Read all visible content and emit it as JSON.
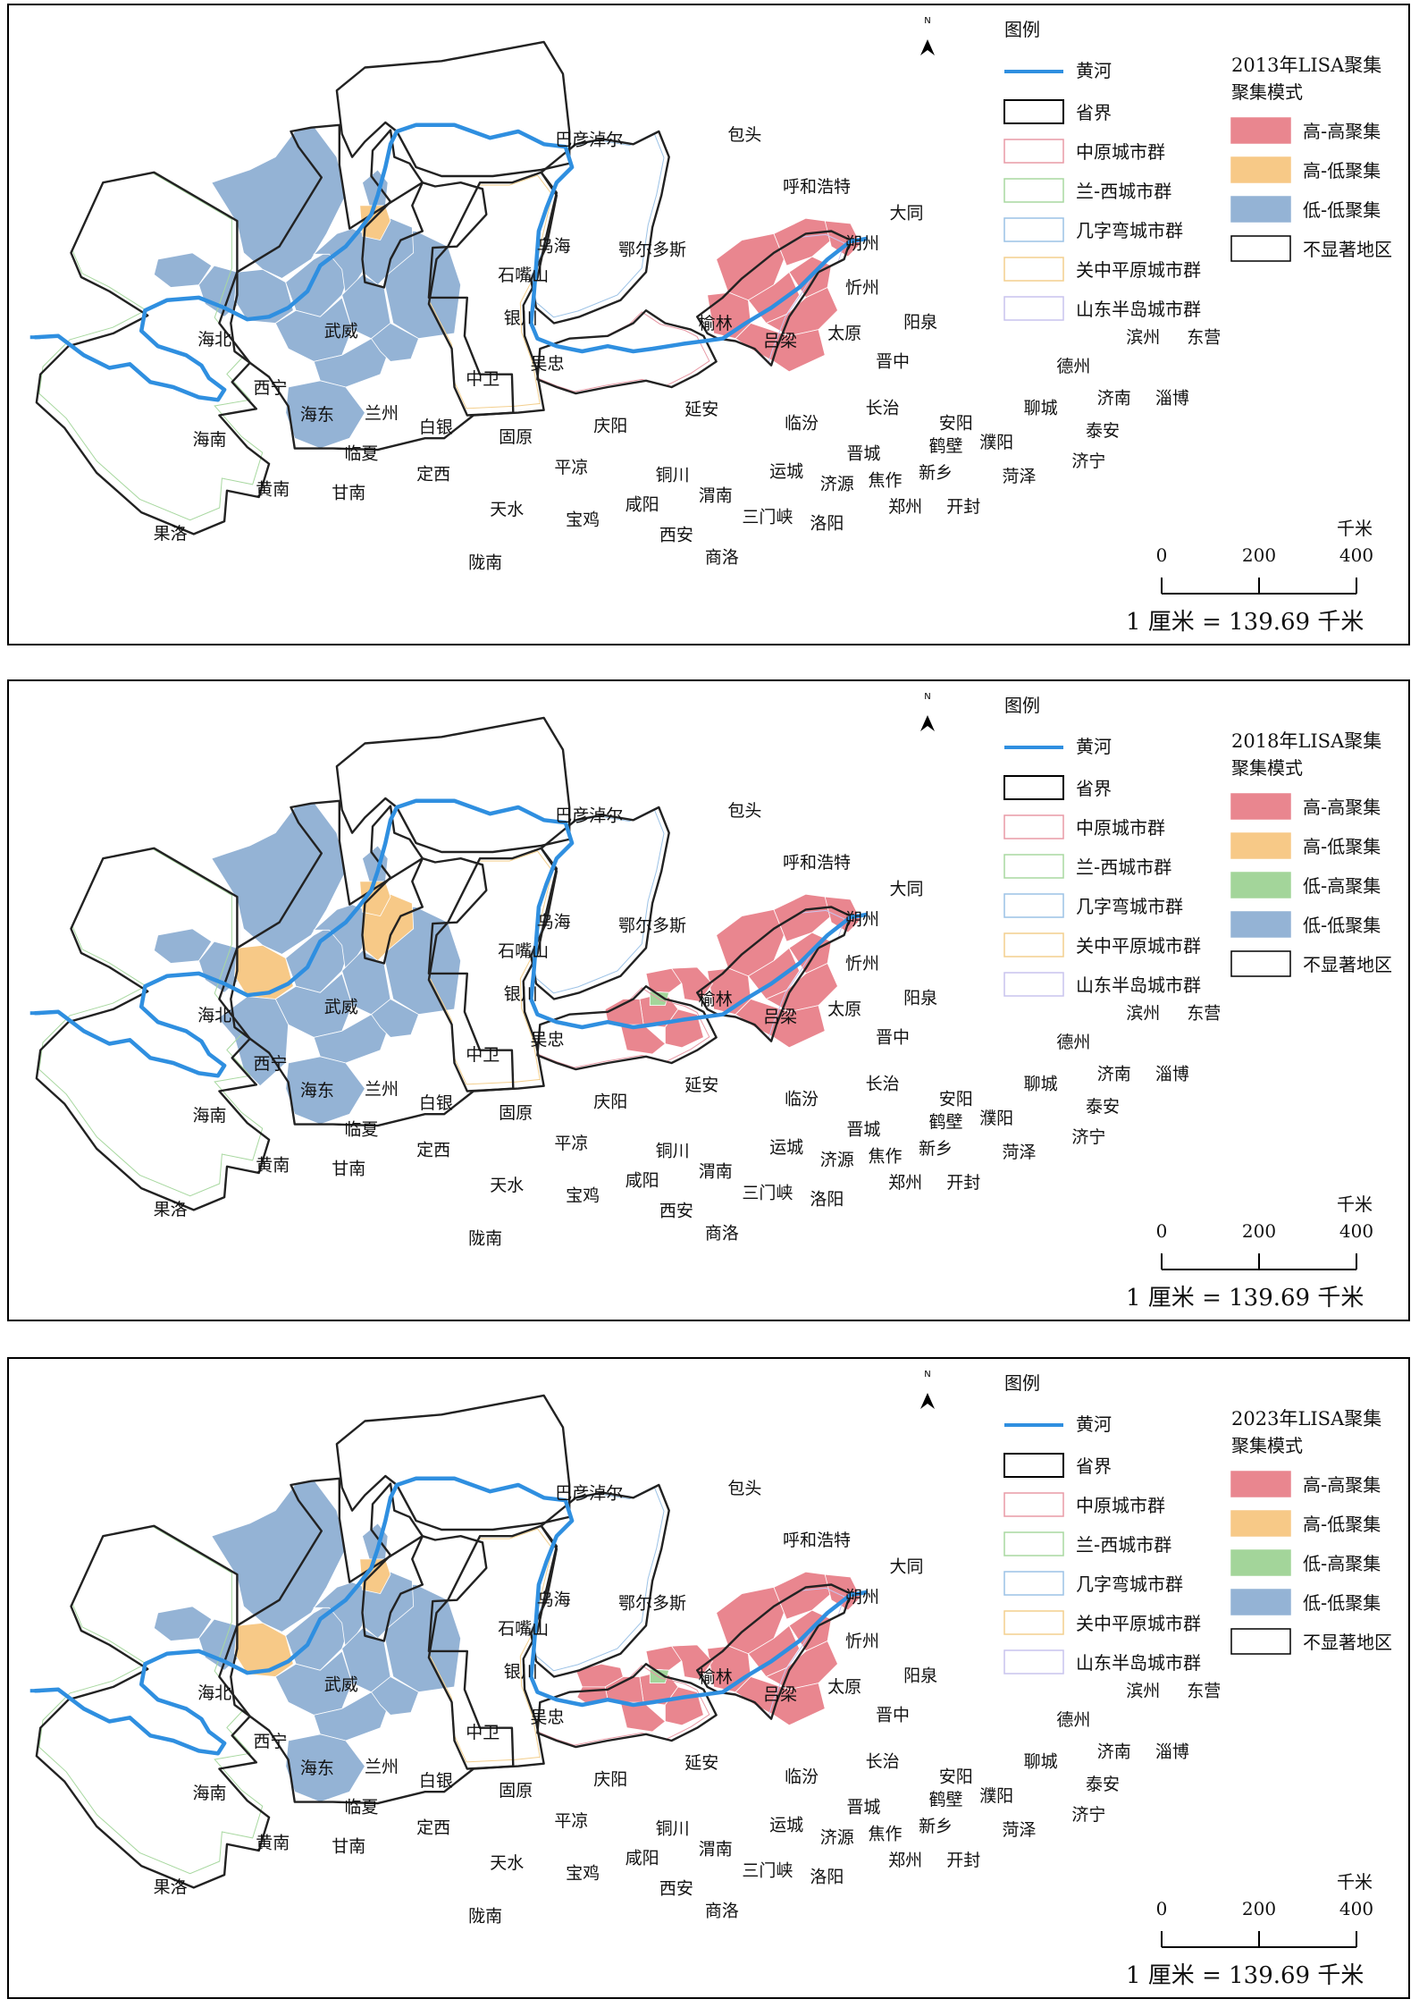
{
  "north_label": "N",
  "legend": {
    "title": "图例",
    "river": "黄河",
    "layers": [
      {
        "label": "省界",
        "stroke": "#000000"
      },
      {
        "label": "中原城市群",
        "stroke": "#e89aa6"
      },
      {
        "label": "兰-西城市群",
        "stroke": "#a8d8a0"
      },
      {
        "label": "几字弯城市群",
        "stroke": "#9cc2e6"
      },
      {
        "label": "关中平原城市群",
        "stroke": "#f3cf8e"
      },
      {
        "label": "山东半岛城市群",
        "stroke": "#c9c4ee"
      }
    ]
  },
  "colors": {
    "high_high": "#e9868f",
    "high_low": "#f7c987",
    "low_high": "#a3d59a",
    "low_low": "#94b3d5",
    "none": "#ffffff",
    "river": "#2f8fe0"
  },
  "cities": [
    {
      "name": "巴彦淖尔",
      "x": 460,
      "y": 112
    },
    {
      "name": "包头",
      "x": 583,
      "y": 108
    },
    {
      "name": "呼和浩特",
      "x": 640,
      "y": 149
    },
    {
      "name": "乌海",
      "x": 432,
      "y": 196
    },
    {
      "name": "石嘴山",
      "x": 408,
      "y": 219
    },
    {
      "name": "鄂尔多斯",
      "x": 510,
      "y": 199
    },
    {
      "name": "大同",
      "x": 711,
      "y": 170
    },
    {
      "name": "朔州",
      "x": 676,
      "y": 194
    },
    {
      "name": "忻州",
      "x": 676,
      "y": 229
    },
    {
      "name": "阳泉",
      "x": 722,
      "y": 256
    },
    {
      "name": "太原",
      "x": 662,
      "y": 265
    },
    {
      "name": "吕梁",
      "x": 611,
      "y": 271
    },
    {
      "name": "榆林",
      "x": 560,
      "y": 257
    },
    {
      "name": "银川",
      "x": 406,
      "y": 253
    },
    {
      "name": "吴忠",
      "x": 427,
      "y": 289
    },
    {
      "name": "武威",
      "x": 264,
      "y": 263
    },
    {
      "name": "海北",
      "x": 164,
      "y": 270
    },
    {
      "name": "西宁",
      "x": 208,
      "y": 308
    },
    {
      "name": "海东",
      "x": 245,
      "y": 329
    },
    {
      "name": "兰州",
      "x": 296,
      "y": 328
    },
    {
      "name": "白银",
      "x": 339,
      "y": 339
    },
    {
      "name": "中卫",
      "x": 376,
      "y": 301
    },
    {
      "name": "固原",
      "x": 402,
      "y": 347
    },
    {
      "name": "庆阳",
      "x": 477,
      "y": 338
    },
    {
      "name": "延安",
      "x": 549,
      "y": 325
    },
    {
      "name": "晋中",
      "x": 700,
      "y": 287
    },
    {
      "name": "长治",
      "x": 692,
      "y": 324
    },
    {
      "name": "临汾",
      "x": 628,
      "y": 336
    },
    {
      "name": "海南",
      "x": 160,
      "y": 349
    },
    {
      "name": "临夏",
      "x": 280,
      "y": 360
    },
    {
      "name": "黄南",
      "x": 210,
      "y": 388
    },
    {
      "name": "甘南",
      "x": 270,
      "y": 391
    },
    {
      "name": "定西",
      "x": 337,
      "y": 376
    },
    {
      "name": "平凉",
      "x": 446,
      "y": 371
    },
    {
      "name": "铜川",
      "x": 526,
      "y": 377
    },
    {
      "name": "晋城",
      "x": 677,
      "y": 360
    },
    {
      "name": "运城",
      "x": 616,
      "y": 374
    },
    {
      "name": "济源",
      "x": 656,
      "y": 384
    },
    {
      "name": "焦作",
      "x": 694,
      "y": 381
    },
    {
      "name": "安阳",
      "x": 750,
      "y": 336
    },
    {
      "name": "鹤壁",
      "x": 742,
      "y": 354
    },
    {
      "name": "濮阳",
      "x": 782,
      "y": 351
    },
    {
      "name": "新乡",
      "x": 734,
      "y": 375
    },
    {
      "name": "郑州",
      "x": 710,
      "y": 402
    },
    {
      "name": "开封",
      "x": 756,
      "y": 402
    },
    {
      "name": "菏泽",
      "x": 800,
      "y": 378
    },
    {
      "name": "咸阳",
      "x": 502,
      "y": 400
    },
    {
      "name": "渭南",
      "x": 560,
      "y": 393
    },
    {
      "name": "天水",
      "x": 395,
      "y": 404
    },
    {
      "name": "宝鸡",
      "x": 455,
      "y": 412
    },
    {
      "name": "西安",
      "x": 529,
      "y": 424
    },
    {
      "name": "三门峡",
      "x": 601,
      "y": 410
    },
    {
      "name": "洛阳",
      "x": 648,
      "y": 415
    },
    {
      "name": "商洛",
      "x": 565,
      "y": 442
    },
    {
      "name": "陇南",
      "x": 378,
      "y": 446
    },
    {
      "name": "果洛",
      "x": 129,
      "y": 423
    },
    {
      "name": "滨州",
      "x": 898,
      "y": 268
    },
    {
      "name": "东营",
      "x": 946,
      "y": 268
    },
    {
      "name": "德州",
      "x": 843,
      "y": 291
    },
    {
      "name": "济南",
      "x": 875,
      "y": 316
    },
    {
      "name": "淄博",
      "x": 921,
      "y": 316
    },
    {
      "name": "聊城",
      "x": 817,
      "y": 324
    },
    {
      "name": "泰安",
      "x": 866,
      "y": 342
    },
    {
      "name": "济宁",
      "x": 855,
      "y": 366
    }
  ],
  "panels": [
    {
      "lisa_title": "2013年LISA聚集",
      "mode_title": "聚集模式",
      "classes": [
        "高-高聚集",
        "高-低聚集",
        "低-低聚集",
        "不显著地区"
      ],
      "class_keys": [
        "high_high",
        "high_low",
        "low_low",
        "none"
      ],
      "high_high": [
        "德州",
        "滨州",
        "东营",
        "聊城",
        "济南",
        "淄博",
        "泰安",
        "济宁"
      ],
      "high_low": [
        "银川"
      ],
      "low_high": [],
      "low_low": [
        "武威",
        "西宁",
        "海东",
        "兰州",
        "白银",
        "中卫",
        "固原",
        "庆阳",
        "定西",
        "天水",
        "陇南",
        "吴忠",
        "石嘴山",
        "平凉"
      ],
      "scale": {
        "unit": "千米",
        "ticks": [
          "0",
          "200",
          "400"
        ],
        "ratio": "1 厘米 = 139.69 千米"
      }
    },
    {
      "lisa_title": "2018年LISA聚集",
      "mode_title": "聚集模式",
      "classes": [
        "高-高聚集",
        "高-低聚集",
        "低-高聚集",
        "低-低聚集",
        "不显著地区"
      ],
      "class_keys": [
        "high_high",
        "high_low",
        "low_high",
        "low_low",
        "none"
      ],
      "high_high": [
        "德州",
        "滨州",
        "东营",
        "聊城",
        "济南",
        "淄博",
        "泰安",
        "济宁",
        "新乡",
        "开封",
        "郑州",
        "焦作",
        "安阳",
        "濮阳"
      ],
      "high_low": [
        "银川",
        "兰州",
        "吴忠"
      ],
      "low_high": [
        "鹤壁"
      ],
      "low_low": [
        "武威",
        "西宁",
        "海东",
        "白银",
        "中卫",
        "固原",
        "庆阳",
        "定西",
        "天水",
        "陇南",
        "石嘴山",
        "平凉",
        "甘南"
      ],
      "scale": {
        "unit": "千米",
        "ticks": [
          "0",
          "200",
          "400"
        ],
        "ratio": "1 厘米 = 139.69 千米"
      }
    },
    {
      "lisa_title": "2023年LISA聚集",
      "mode_title": "聚集模式",
      "classes": [
        "高-高聚集",
        "高-低聚集",
        "低-高聚集",
        "低-低聚集",
        "不显著地区"
      ],
      "class_keys": [
        "high_high",
        "high_low",
        "low_high",
        "low_low",
        "none"
      ],
      "high_high": [
        "德州",
        "滨州",
        "东营",
        "聊城",
        "济南",
        "淄博",
        "泰安",
        "济宁",
        "新乡",
        "开封",
        "郑州",
        "焦作",
        "安阳",
        "濮阳",
        "晋城",
        "济源"
      ],
      "high_low": [
        "银川",
        "兰州"
      ],
      "low_high": [
        "鹤壁"
      ],
      "low_low": [
        "武威",
        "西宁",
        "海东",
        "白银",
        "中卫",
        "固原",
        "庆阳",
        "定西",
        "天水",
        "陇南",
        "石嘴山",
        "平凉",
        "吴忠"
      ],
      "scale": {
        "unit": "千米",
        "ticks": [
          "0",
          "200",
          "400"
        ],
        "ratio": "1 厘米 = 139.69 千米"
      }
    }
  ]
}
